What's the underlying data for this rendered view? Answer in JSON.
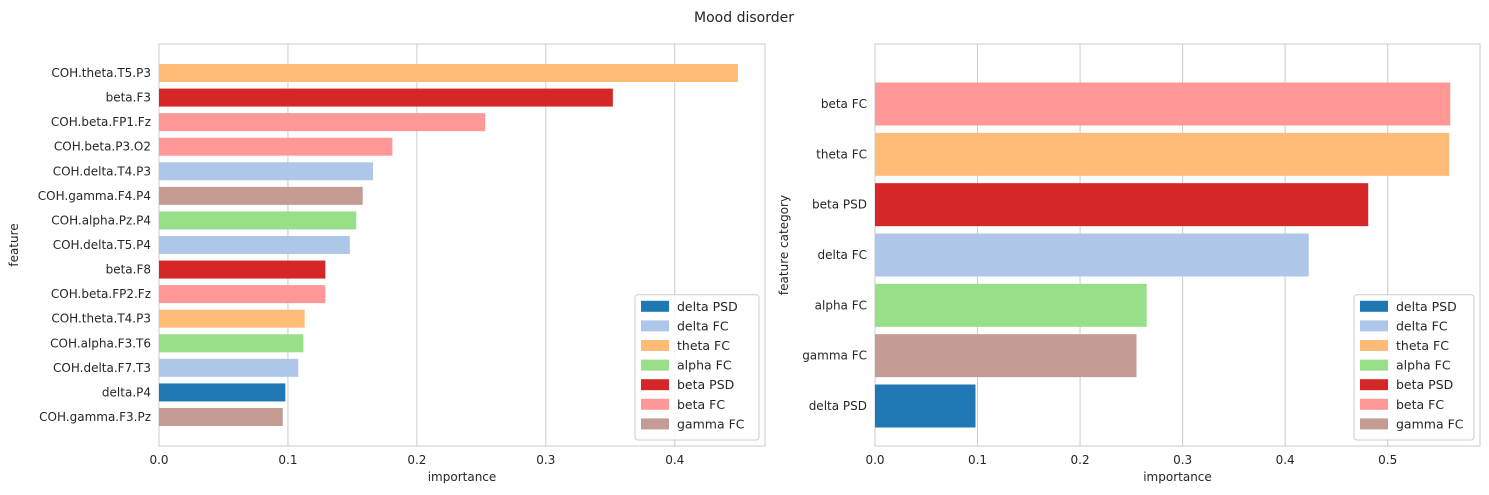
{
  "suptitle": "Mood disorder",
  "legend_entries": [
    "delta PSD",
    "delta FC",
    "theta FC",
    "alpha FC",
    "beta PSD",
    "beta FC",
    "gamma FC"
  ],
  "colors": {
    "delta PSD": "#1f77b4",
    "delta FC": "#aec7e8",
    "theta FC": "#ffbb78",
    "alpha FC": "#98df8a",
    "beta PSD": "#d62728",
    "beta FC": "#ff9896",
    "gamma FC": "#c49c94"
  },
  "chart_data": [
    {
      "type": "bar",
      "orientation": "horizontal",
      "xlabel": "importance",
      "ylabel": "feature",
      "xlim": [
        0,
        0.47
      ],
      "xticks": [
        "0.0",
        "0.1",
        "0.2",
        "0.3",
        "0.4"
      ],
      "grid": "vertical",
      "legend_position": "lower-right",
      "categories": [
        "COH.theta.T5.P3",
        "beta.F3",
        "COH.beta.FP1.Fz",
        "COH.beta.P3.O2",
        "COH.delta.T4.P3",
        "COH.gamma.F4.P4",
        "COH.alpha.Pz.P4",
        "COH.delta.T5.P4",
        "beta.F8",
        "COH.beta.FP2.Fz",
        "COH.theta.T4.P3",
        "COH.alpha.F3.T6",
        "COH.delta.F7.T3",
        "delta.P4",
        "COH.gamma.F3.Pz"
      ],
      "values": [
        0.449,
        0.352,
        0.253,
        0.181,
        0.166,
        0.158,
        0.153,
        0.148,
        0.129,
        0.129,
        0.113,
        0.112,
        0.108,
        0.098,
        0.096
      ],
      "groups": [
        "theta FC",
        "beta PSD",
        "beta FC",
        "beta FC",
        "delta FC",
        "gamma FC",
        "alpha FC",
        "delta FC",
        "beta PSD",
        "beta FC",
        "theta FC",
        "alpha FC",
        "delta FC",
        "delta PSD",
        "gamma FC"
      ]
    },
    {
      "type": "bar",
      "orientation": "horizontal",
      "xlabel": "importance",
      "ylabel": "feature category",
      "xlim": [
        0,
        0.59
      ],
      "xticks": [
        "0.0",
        "0.1",
        "0.2",
        "0.3",
        "0.4",
        "0.5"
      ],
      "grid": "vertical",
      "legend_position": "lower-right",
      "categories": [
        "beta FC",
        "theta FC",
        "beta PSD",
        "delta FC",
        "alpha FC",
        "gamma FC",
        "delta PSD"
      ],
      "values": [
        0.561,
        0.56,
        0.481,
        0.423,
        0.265,
        0.255,
        0.098
      ],
      "groups": [
        "beta FC",
        "theta FC",
        "beta PSD",
        "delta FC",
        "alpha FC",
        "gamma FC",
        "delta PSD"
      ]
    }
  ]
}
